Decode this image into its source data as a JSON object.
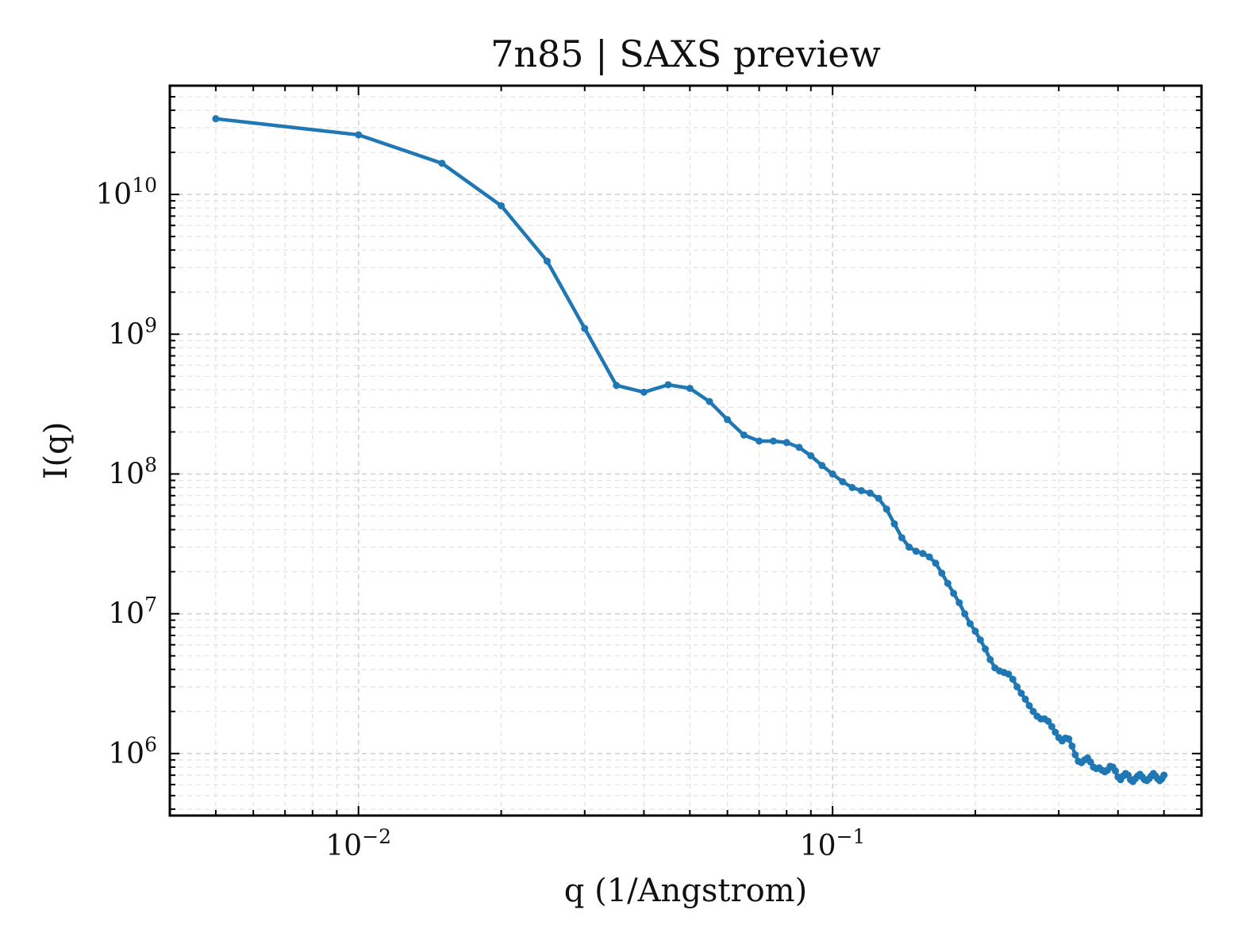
{
  "chart_data": {
    "type": "line",
    "title": "7n85 | SAXS preview",
    "xlabel": "q (1/Angstrom)",
    "ylabel": "I(q)",
    "x_scale": "log",
    "y_scale": "log",
    "xlim": [
      0.004,
      0.6
    ],
    "ylim": [
      360000,
      60000000000
    ],
    "grid": true,
    "legend": "none",
    "x_ticks": [
      {
        "base": "10",
        "exp": "−2",
        "value": 0.01
      },
      {
        "base": "10",
        "exp": "−1",
        "value": 0.1
      }
    ],
    "y_ticks": [
      {
        "base": "10",
        "exp": "6",
        "value": 1000000
      },
      {
        "base": "10",
        "exp": "7",
        "value": 10000000
      },
      {
        "base": "10",
        "exp": "8",
        "value": 100000000
      },
      {
        "base": "10",
        "exp": "9",
        "value": 1000000000
      },
      {
        "base": "10",
        "exp": "10",
        "value": 10000000000
      }
    ],
    "series": [
      {
        "color": "#1f77b4",
        "x": [
          0.005,
          0.01,
          0.015,
          0.02,
          0.025,
          0.03,
          0.035,
          0.04,
          0.045,
          0.05,
          0.055,
          0.06,
          0.065,
          0.07,
          0.075,
          0.08,
          0.085,
          0.09,
          0.095,
          0.1,
          0.105,
          0.11,
          0.115,
          0.12,
          0.125,
          0.13,
          0.135,
          0.14,
          0.145,
          0.15,
          0.155,
          0.16,
          0.165,
          0.17,
          0.175,
          0.18,
          0.185,
          0.19,
          0.195,
          0.2,
          0.205,
          0.21,
          0.215,
          0.22,
          0.225,
          0.23,
          0.235,
          0.24,
          0.245,
          0.25,
          0.255,
          0.26,
          0.265,
          0.27,
          0.275,
          0.28,
          0.285,
          0.29,
          0.295,
          0.3,
          0.305,
          0.31,
          0.315,
          0.32,
          0.325,
          0.33,
          0.335,
          0.34,
          0.345,
          0.35,
          0.355,
          0.36,
          0.365,
          0.37,
          0.375,
          0.38,
          0.385,
          0.39,
          0.395,
          0.4,
          0.405,
          0.41,
          0.415,
          0.42,
          0.425,
          0.43,
          0.435,
          0.44,
          0.445,
          0.45,
          0.455,
          0.46,
          0.465,
          0.47,
          0.475,
          0.48,
          0.485,
          0.49,
          0.495,
          0.5
        ],
        "y": [
          34800000000,
          26700000000,
          16700000000,
          8300000000,
          3330000000,
          1100000000,
          430000000,
          385000000,
          435000000,
          410000000,
          330000000,
          245000000,
          190000000,
          172000000,
          172000000,
          168000000,
          155000000,
          135000000,
          115000000,
          100000000,
          88000000,
          80000000,
          76000000,
          73000000,
          67000000,
          56000000,
          44000000,
          35000000,
          30000000,
          28000000,
          27000000,
          25500000,
          23000000,
          19500000,
          16500000,
          14000000,
          12000000,
          10000000,
          8500000,
          7500000,
          6500000,
          5600000,
          4700000,
          4100000,
          3900000,
          3800000,
          3700000,
          3400000,
          3000000,
          2700000,
          2450000,
          2200000,
          2000000,
          1850000,
          1770000,
          1770000,
          1700000,
          1560000,
          1420000,
          1300000,
          1230000,
          1290000,
          1270000,
          1130000,
          980000,
          880000,
          860000,
          900000,
          930000,
          870000,
          800000,
          780000,
          790000,
          760000,
          740000,
          760000,
          810000,
          800000,
          750000,
          680000,
          650000,
          690000,
          720000,
          700000,
          650000,
          630000,
          660000,
          690000,
          710000,
          680000,
          650000,
          640000,
          660000,
          690000,
          720000,
          690000,
          660000,
          640000,
          660000,
          700000
        ]
      }
    ]
  }
}
